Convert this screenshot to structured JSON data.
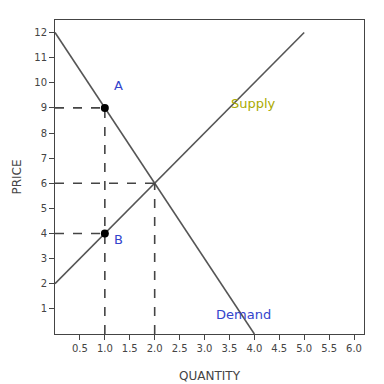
{
  "chart_data": {
    "type": "line",
    "xlabel": "QUANTITY",
    "ylabel": "PRICE",
    "xlim": [
      0,
      6.2
    ],
    "ylim": [
      0,
      12.5
    ],
    "xticks": [
      0.5,
      {
        "value": 1.0,
        "label": "1.0"
      },
      1.5,
      {
        "value": 2.0,
        "label": "2.0"
      },
      2.5,
      {
        "value": 3.0,
        "label": "3.0"
      },
      3.5,
      {
        "value": 4.0,
        "label": "4.0"
      },
      4.5,
      {
        "value": 5.0,
        "label": "5.0"
      },
      5.5,
      {
        "value": 6.0,
        "label": "6.0"
      }
    ],
    "yticks": [
      1,
      2,
      3,
      4,
      5,
      6,
      7,
      8,
      9,
      10,
      11,
      12
    ],
    "grid": false,
    "series": [
      {
        "type": "line",
        "x": [
          0,
          4
        ],
        "values": [
          12,
          0
        ],
        "color": "#555555",
        "line_style": "solid"
      },
      {
        "type": "line",
        "x": [
          0,
          5
        ],
        "values": [
          2,
          12
        ],
        "color": "#555555",
        "line_style": "solid"
      },
      {
        "type": "line",
        "x": [
          0,
          1.0
        ],
        "values": [
          9,
          9
        ],
        "color": "#444444",
        "line_style": "dashed"
      },
      {
        "type": "line",
        "x": [
          0,
          1.0
        ],
        "values": [
          4,
          4
        ],
        "color": "#444444",
        "line_style": "dashed"
      },
      {
        "type": "line",
        "x": [
          0,
          2.0
        ],
        "values": [
          6,
          6
        ],
        "color": "#444444",
        "line_style": "dashed"
      },
      {
        "type": "line",
        "x": [
          1.0,
          1.0
        ],
        "values": [
          0,
          9
        ],
        "color": "#444444",
        "line_style": "dashed"
      },
      {
        "type": "line",
        "x": [
          2.0,
          2.0
        ],
        "values": [
          0,
          6
        ],
        "color": "#444444",
        "line_style": "dashed"
      },
      {
        "type": "scatter",
        "x": [
          1
        ],
        "values": [
          9
        ],
        "color": "#000000",
        "marker": "circle"
      },
      {
        "type": "scatter",
        "x": [
          1
        ],
        "values": [
          4
        ],
        "color": "#000000",
        "marker": "circle"
      }
    ],
    "annotations": [
      {
        "text": "A",
        "x": 1.15,
        "y": 9.5,
        "color": "#3344cc"
      },
      {
        "text": "B",
        "x": 1.15,
        "y": 3.4,
        "color": "#3344cc"
      },
      {
        "text": "Supply",
        "x": 3.5,
        "y": 8.8,
        "color": "#aaaa00"
      },
      {
        "text": "Demand",
        "x": 3.2,
        "y": 0.4,
        "color": "#3344cc"
      }
    ]
  }
}
